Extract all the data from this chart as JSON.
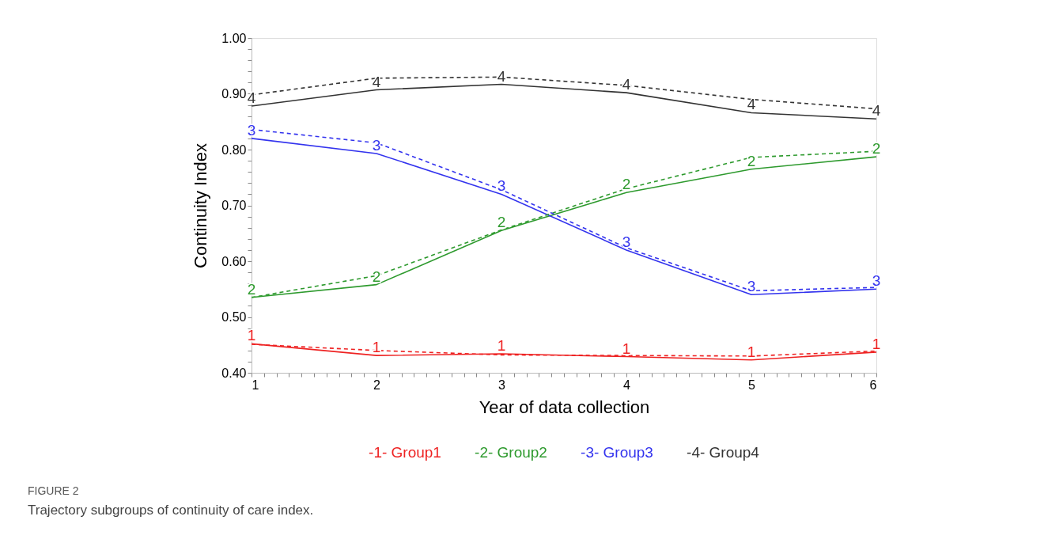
{
  "chart_data": {
    "type": "line",
    "xlabel": "Year of data collection",
    "ylabel": "Continuity Index",
    "x": [
      1,
      2,
      3,
      4,
      5,
      6
    ],
    "xlim": [
      1,
      6
    ],
    "xticks": [
      1,
      {
        "value": 1.1,
        "label": null
      },
      {
        "value": 1.2,
        "label": null
      },
      {
        "value": 1.3,
        "label": null
      },
      {
        "value": 1.4,
        "label": null
      },
      {
        "value": 1.5,
        "label": null
      },
      {
        "value": 1.6,
        "label": null
      },
      {
        "value": 1.7,
        "label": null
      },
      {
        "value": 1.8,
        "label": null
      },
      {
        "value": 1.9,
        "label": null
      },
      2,
      {
        "value": 2.1,
        "label": null
      },
      {
        "value": 2.2,
        "label": null
      },
      {
        "value": 2.3,
        "label": null
      },
      {
        "value": 2.4,
        "label": null
      },
      {
        "value": 2.5,
        "label": null
      },
      {
        "value": 2.6,
        "label": null
      },
      {
        "value": 2.7,
        "label": null
      },
      {
        "value": 2.8,
        "label": null
      },
      {
        "value": 2.9,
        "label": null
      },
      3,
      {
        "value": 3.1,
        "label": null
      },
      {
        "value": 3.2,
        "label": null
      },
      {
        "value": 3.3,
        "label": null
      },
      {
        "value": 3.4,
        "label": null
      },
      {
        "value": 3.5,
        "label": null
      },
      {
        "value": 3.6,
        "label": null
      },
      {
        "value": 3.7,
        "label": null
      },
      {
        "value": 3.8,
        "label": null
      },
      {
        "value": 3.9,
        "label": null
      },
      4,
      {
        "value": 4.1,
        "label": null
      },
      {
        "value": 4.2,
        "label": null
      },
      {
        "value": 4.3,
        "label": null
      },
      {
        "value": 4.4,
        "label": null
      },
      {
        "value": 4.5,
        "label": null
      },
      {
        "value": 4.6,
        "label": null
      },
      {
        "value": 4.7,
        "label": null
      },
      {
        "value": 4.8,
        "label": null
      },
      {
        "value": 4.9,
        "label": null
      },
      5,
      {
        "value": 5.1,
        "label": null
      },
      {
        "value": 5.2,
        "label": null
      },
      {
        "value": 5.3,
        "label": null
      },
      {
        "value": 5.4,
        "label": null
      },
      {
        "value": 5.5,
        "label": null
      },
      {
        "value": 5.6,
        "label": null
      },
      {
        "value": 5.7,
        "label": null
      },
      {
        "value": 5.8,
        "label": null
      },
      {
        "value": 5.9,
        "label": null
      },
      6
    ],
    "ylim": [
      0.4,
      1.0
    ],
    "yticks": [
      {
        "value": 0.4,
        "label": "0.40"
      },
      {
        "value": 0.42,
        "label": null
      },
      {
        "value": 0.44,
        "label": null
      },
      {
        "value": 0.46,
        "label": null
      },
      {
        "value": 0.48,
        "label": null
      },
      {
        "value": 0.5,
        "label": "0.50"
      },
      {
        "value": 0.52,
        "label": null
      },
      {
        "value": 0.54,
        "label": null
      },
      {
        "value": 0.56,
        "label": null
      },
      {
        "value": 0.58,
        "label": null
      },
      {
        "value": 0.6,
        "label": "0.60"
      },
      {
        "value": 0.62,
        "label": null
      },
      {
        "value": 0.64,
        "label": null
      },
      {
        "value": 0.66,
        "label": null
      },
      {
        "value": 0.68,
        "label": null
      },
      {
        "value": 0.7,
        "label": "0.70"
      },
      {
        "value": 0.72,
        "label": null
      },
      {
        "value": 0.74,
        "label": null
      },
      {
        "value": 0.76,
        "label": null
      },
      {
        "value": 0.78,
        "label": null
      },
      {
        "value": 0.8,
        "label": "0.80"
      },
      {
        "value": 0.82,
        "label": null
      },
      {
        "value": 0.84,
        "label": null
      },
      {
        "value": 0.86,
        "label": null
      },
      {
        "value": 0.88,
        "label": null
      },
      {
        "value": 0.9,
        "label": "0.90"
      },
      {
        "value": 0.92,
        "label": null
      },
      {
        "value": 0.94,
        "label": null
      },
      {
        "value": 0.96,
        "label": null
      },
      {
        "value": 0.98,
        "label": null
      },
      {
        "value": 1.0,
        "label": "1.00"
      }
    ],
    "grid": false,
    "legend": "bottom",
    "marker": "none",
    "series": [
      {
        "name": "-1- Group1",
        "color": "#ee2222",
        "line_style": "solid",
        "values": [
          0.452,
          0.431,
          0.434,
          0.429,
          0.423,
          0.437
        ]
      },
      {
        "name": "-2- Group2",
        "color": "#2e9a2e",
        "line_style": "solid",
        "values": [
          0.535,
          0.558,
          0.655,
          0.723,
          0.765,
          0.787
        ]
      },
      {
        "name": "-3- Group3",
        "color": "#3333ee",
        "line_style": "solid",
        "values": [
          0.82,
          0.793,
          0.72,
          0.62,
          0.54,
          0.55
        ]
      },
      {
        "name": "-4- Group4",
        "color": "#333333",
        "line_style": "solid",
        "values": [
          0.878,
          0.907,
          0.917,
          0.902,
          0.866,
          0.855
        ]
      },
      {
        "color": "#ee2222",
        "line_style": "dashed",
        "values": [
          0.451,
          0.44,
          0.432,
          0.431,
          0.43,
          0.439
        ]
      },
      {
        "color": "#2e9a2e",
        "line_style": "dashed",
        "values": [
          0.535,
          0.574,
          0.656,
          0.73,
          0.786,
          0.797
        ]
      },
      {
        "color": "#3333ee",
        "line_style": "dashed",
        "values": [
          0.836,
          0.812,
          0.728,
          0.624,
          0.547,
          0.553
        ]
      },
      {
        "color": "#333333",
        "line_style": "dashed",
        "values": [
          0.898,
          0.928,
          0.93,
          0.915,
          0.89,
          0.873
        ]
      }
    ],
    "annotations": [
      {
        "text": "1",
        "x": 1,
        "y": 0.452
      },
      {
        "text": "1",
        "x": 2,
        "y": 0.431
      },
      {
        "text": "1",
        "x": 3,
        "y": 0.434
      },
      {
        "text": "1",
        "x": 4,
        "y": 0.429
      },
      {
        "text": "1",
        "x": 5,
        "y": 0.423
      },
      {
        "text": "1",
        "x": 6,
        "y": 0.437
      },
      {
        "text": "2",
        "x": 1,
        "y": 0.535
      },
      {
        "text": "2",
        "x": 2,
        "y": 0.558
      },
      {
        "text": "2",
        "x": 3,
        "y": 0.655
      },
      {
        "text": "2",
        "x": 4,
        "y": 0.723
      },
      {
        "text": "2",
        "x": 5,
        "y": 0.765
      },
      {
        "text": "2",
        "x": 6,
        "y": 0.787
      },
      {
        "text": "3",
        "x": 1,
        "y": 0.82
      },
      {
        "text": "3",
        "x": 2,
        "y": 0.793
      },
      {
        "text": "3",
        "x": 3,
        "y": 0.72
      },
      {
        "text": "3",
        "x": 4,
        "y": 0.62
      },
      {
        "text": "3",
        "x": 5,
        "y": 0.54
      },
      {
        "text": "3",
        "x": 6,
        "y": 0.55
      },
      {
        "text": "4",
        "x": 1,
        "y": 0.878
      },
      {
        "text": "4",
        "x": 2,
        "y": 0.907
      },
      {
        "text": "4",
        "x": 3,
        "y": 0.917
      },
      {
        "text": "4",
        "x": 4,
        "y": 0.902
      },
      {
        "text": "4",
        "x": 5,
        "y": 0.866
      },
      {
        "text": "4",
        "x": 6,
        "y": 0.855
      },
      "FIGURE 2",
      "Trajectory subgroups of continuity of care index."
    ]
  }
}
